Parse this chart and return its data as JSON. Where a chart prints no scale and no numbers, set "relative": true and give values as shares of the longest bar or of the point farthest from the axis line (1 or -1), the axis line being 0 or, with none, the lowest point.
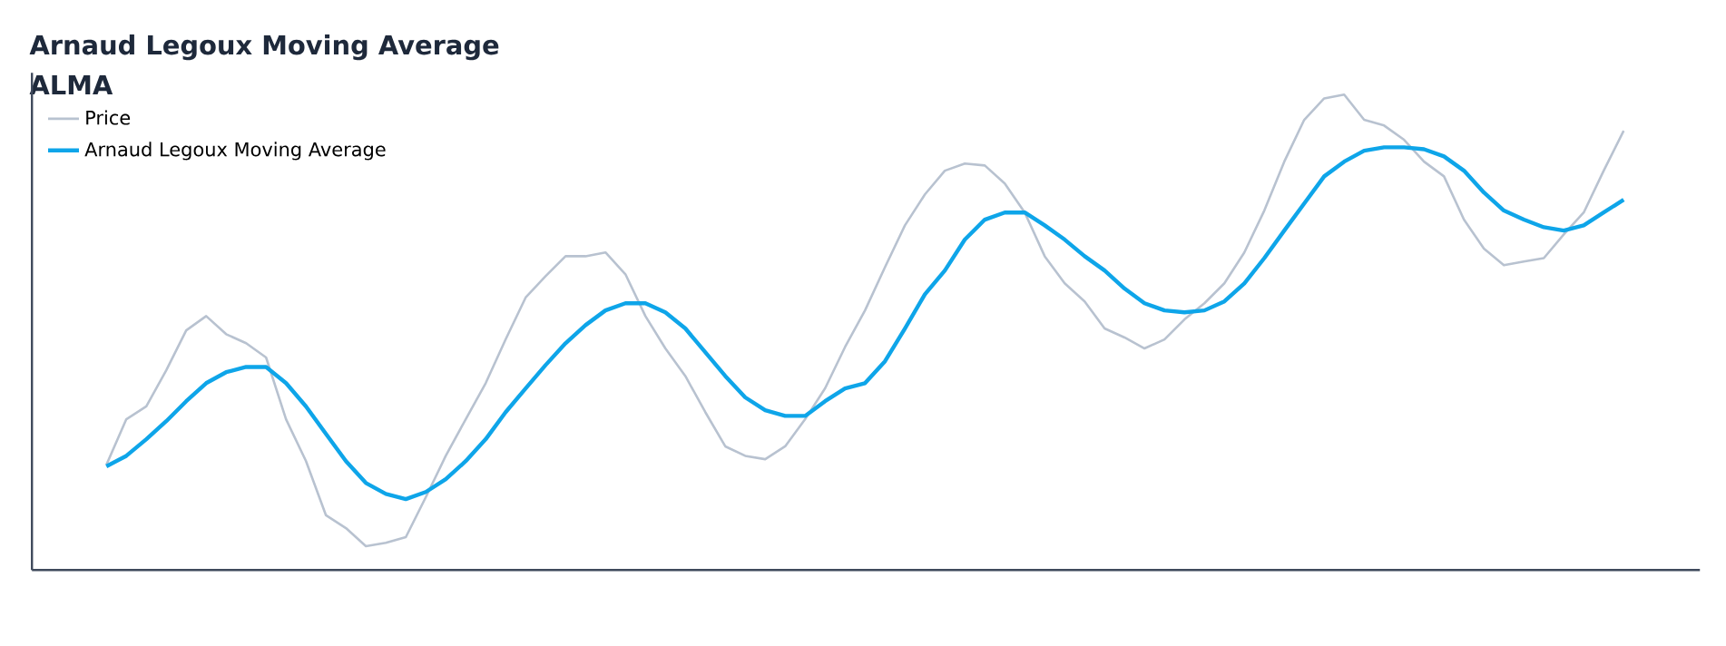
{
  "chart_data": {
    "type": "line",
    "title": "Arnaud Legoux Moving Average",
    "subtitle": "ALMA",
    "relative": true,
    "legend": "top left",
    "categories": [
      null,
      null,
      null,
      null,
      null,
      null,
      null,
      null,
      null,
      null,
      null,
      null,
      null,
      null,
      null,
      null,
      null,
      null,
      null,
      null,
      null,
      null,
      null,
      null,
      null,
      null,
      null,
      null,
      null,
      null,
      null,
      null,
      null,
      null,
      null,
      null,
      null,
      null,
      null,
      null,
      null,
      null,
      null,
      null,
      null,
      null,
      null,
      null,
      null,
      null,
      null,
      null,
      null,
      null,
      null,
      null,
      null,
      null,
      null,
      null,
      null,
      null,
      null,
      null,
      null,
      null,
      null,
      null,
      null,
      null,
      null,
      null,
      null,
      null,
      null,
      null,
      null
    ],
    "series": [
      {
        "name": "Price",
        "color": "#b8c2d0",
        "values": [
          0.221,
          0.317,
          0.344,
          0.42,
          0.504,
          0.534,
          0.496,
          0.477,
          0.447,
          0.317,
          0.229,
          0.115,
          0.088,
          0.05,
          0.057,
          0.069,
          0.153,
          0.24,
          0.317,
          0.393,
          0.485,
          0.573,
          0.618,
          0.66,
          0.66,
          0.668,
          0.622,
          0.534,
          0.466,
          0.408,
          0.332,
          0.26,
          0.24,
          0.233,
          0.26,
          0.317,
          0.382,
          0.469,
          0.546,
          0.637,
          0.725,
          0.79,
          0.84,
          0.855,
          0.851,
          0.813,
          0.752,
          0.66,
          0.603,
          0.565,
          0.508,
          0.489,
          0.466,
          0.485,
          0.527,
          0.561,
          0.603,
          0.668,
          0.756,
          0.859,
          0.947,
          0.992,
          1,
          0.947,
          0.935,
          0.905,
          0.859,
          0.828,
          0.737,
          0.676,
          0.641,
          0.649,
          0.656,
          0.706,
          0.752,
          0.84,
          0.924
        ]
      },
      {
        "name": "Arnaud Legoux Moving Average",
        "color": "#0ea5e9",
        "values": [
          0.218,
          0.24,
          0.275,
          0.313,
          0.355,
          0.393,
          0.416,
          0.427,
          0.427,
          0.393,
          0.344,
          0.286,
          0.229,
          0.183,
          0.16,
          0.149,
          0.164,
          0.191,
          0.229,
          0.275,
          0.332,
          0.382,
          0.431,
          0.477,
          0.515,
          0.546,
          0.561,
          0.561,
          0.542,
          0.508,
          0.458,
          0.408,
          0.363,
          0.336,
          0.324,
          0.324,
          0.355,
          0.382,
          0.393,
          0.439,
          0.508,
          0.58,
          0.63,
          0.695,
          0.737,
          0.752,
          0.752,
          0.725,
          0.695,
          0.66,
          0.63,
          0.592,
          0.561,
          0.546,
          0.542,
          0.546,
          0.565,
          0.603,
          0.656,
          0.714,
          0.771,
          0.828,
          0.859,
          0.882,
          0.889,
          0.889,
          0.885,
          0.87,
          0.84,
          0.794,
          0.756,
          0.737,
          0.721,
          0.714,
          0.725,
          0.752,
          0.779
        ]
      }
    ]
  }
}
